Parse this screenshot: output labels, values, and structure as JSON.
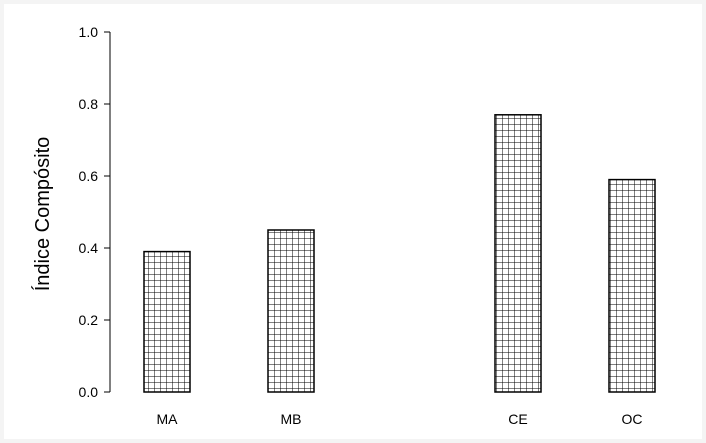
{
  "chart_data": {
    "type": "bar",
    "categories": [
      "MA",
      "MB",
      "CE",
      "OC"
    ],
    "values": [
      0.39,
      0.45,
      0.77,
      0.59
    ],
    "title": "",
    "xlabel": "",
    "ylabel": "Índice Compósito",
    "ylim": [
      0,
      1.0
    ],
    "yticks": [
      "0.0",
      "0.2",
      "0.4",
      "0.6",
      "0.8",
      "1.0"
    ],
    "grid": false,
    "bar_fill": "crosshatch-grid",
    "colors": {
      "bar_line": "#000000",
      "bar_background": "#ffffff",
      "axis": "#000000"
    }
  }
}
